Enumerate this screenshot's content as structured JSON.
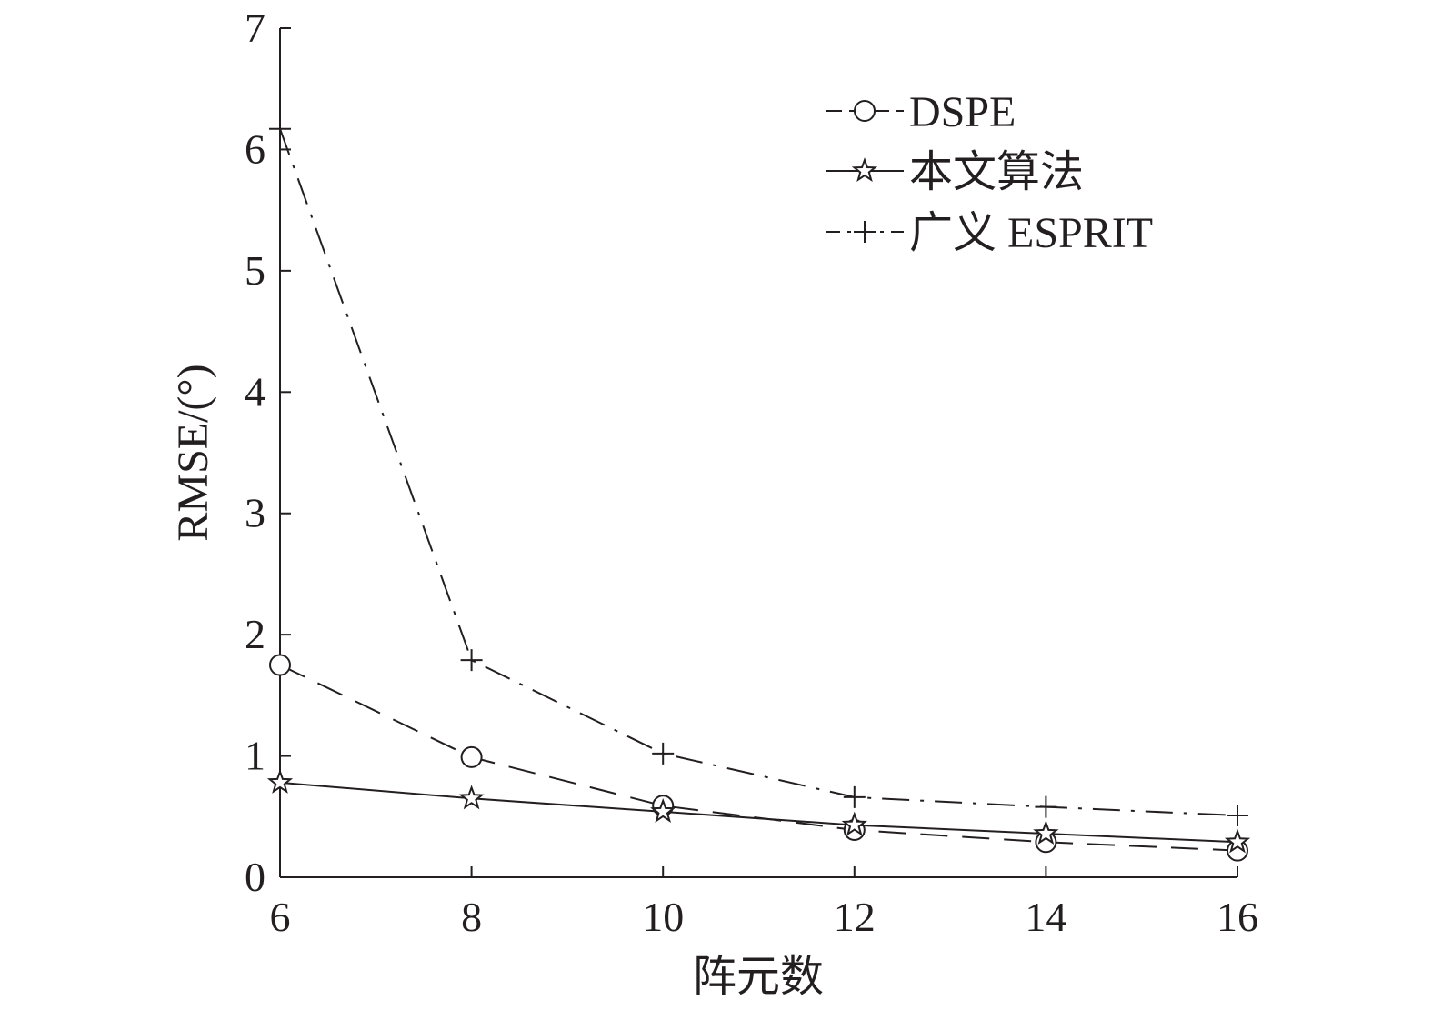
{
  "chart_data": {
    "type": "line",
    "title": "",
    "xlabel": "阵元数",
    "ylabel": "RMSE/(°)",
    "x": [
      6,
      8,
      10,
      12,
      14,
      16
    ],
    "xlim": [
      6,
      16
    ],
    "ylim": [
      0,
      7
    ],
    "xticks": [
      "6",
      "8",
      "10",
      "12",
      "14",
      "16"
    ],
    "yticks": [
      "0",
      "1",
      "2",
      "3",
      "4",
      "5",
      "6",
      "7"
    ],
    "grid": false,
    "legend_position": "top-right",
    "series": [
      {
        "name": "DSPE",
        "marker": "circle",
        "linestyle": "dashed",
        "values": [
          1.75,
          0.99,
          0.59,
          0.39,
          0.29,
          0.22
        ]
      },
      {
        "name": "本文算法",
        "marker": "star",
        "linestyle": "solid",
        "values": [
          0.78,
          0.65,
          0.54,
          0.43,
          0.36,
          0.29
        ]
      },
      {
        "name": "广义 ESPRIT",
        "marker": "plus",
        "linestyle": "dashdot",
        "values": [
          6.17,
          1.79,
          1.02,
          0.66,
          0.58,
          0.51
        ]
      }
    ]
  }
}
